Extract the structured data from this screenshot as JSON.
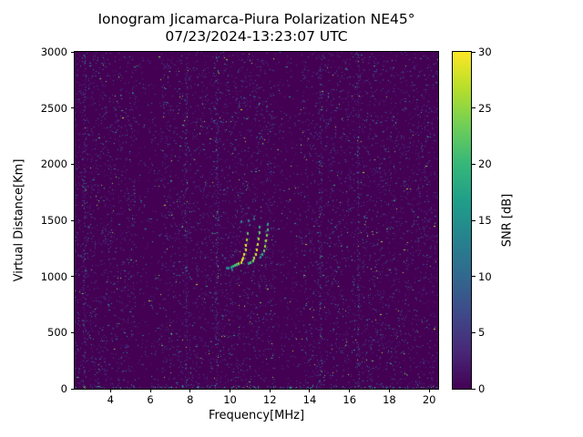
{
  "chart_data": {
    "type": "heatmap",
    "title": "Ionogram Jicamarca-Piura Polarization NE45°",
    "subtitle": "07/23/2024-13:23:07 UTC",
    "xlabel": "Frequency[MHz]",
    "ylabel": "Virtual Distance[Km]",
    "xlim": [
      2.2,
      20.45
    ],
    "ylim": [
      0,
      3000
    ],
    "xticks": [
      4,
      6,
      8,
      10,
      12,
      14,
      16,
      18,
      20
    ],
    "yticks": [
      0,
      500,
      1000,
      1500,
      2000,
      2500,
      3000
    ],
    "grid": false,
    "colorbar": {
      "label": "SNR [dB]",
      "min": 0,
      "max": 30,
      "ticks": [
        0,
        5,
        10,
        15,
        20,
        25,
        30
      ],
      "position": "right"
    },
    "colormap": {
      "name": "viridis",
      "stops": [
        "#440154",
        "#482878",
        "#3e4989",
        "#31688e",
        "#26828e",
        "#1f9e89",
        "#35b779",
        "#6ece58",
        "#b5de2b",
        "#fde725"
      ]
    },
    "background_value_color": "#440154",
    "noise": {
      "seed": 42,
      "density": 0.055,
      "rfi_lines_mhz": [
        2.7,
        7.8,
        9.35,
        14.55,
        16.45
      ],
      "quiet_bands_mhz": [
        5.9,
        12.9
      ],
      "ground_echo_km": 0
    },
    "echo_trace": {
      "units": [
        "freq_MHz",
        "virtual_km",
        "snr_dB"
      ],
      "branches": [
        [
          [
            9.85,
            1075,
            13
          ],
          [
            9.95,
            1082,
            15
          ],
          [
            10.05,
            1088,
            17
          ],
          [
            10.15,
            1094,
            19
          ],
          [
            10.25,
            1101,
            21
          ],
          [
            10.35,
            1108,
            23
          ],
          [
            10.45,
            1118,
            25
          ],
          [
            10.55,
            1131,
            28
          ],
          [
            10.62,
            1148,
            30
          ],
          [
            10.68,
            1170,
            28
          ],
          [
            10.73,
            1202,
            30
          ],
          [
            10.78,
            1240,
            29
          ],
          [
            10.82,
            1284,
            30
          ],
          [
            10.85,
            1333,
            26
          ],
          [
            10.87,
            1384,
            22
          ]
        ],
        [
          [
            10.95,
            1116,
            17
          ],
          [
            11.05,
            1128,
            21
          ],
          [
            11.15,
            1146,
            24
          ],
          [
            11.23,
            1169,
            27
          ],
          [
            11.3,
            1199,
            29
          ],
          [
            11.36,
            1239,
            30
          ],
          [
            11.41,
            1287,
            28
          ],
          [
            11.45,
            1340,
            26
          ],
          [
            11.48,
            1394,
            23
          ],
          [
            11.5,
            1446,
            19
          ]
        ],
        [
          [
            11.55,
            1176,
            15
          ],
          [
            11.63,
            1201,
            19
          ],
          [
            11.7,
            1234,
            23
          ],
          [
            11.76,
            1274,
            26
          ],
          [
            11.81,
            1320,
            26
          ],
          [
            11.85,
            1369,
            24
          ],
          [
            11.88,
            1419,
            21
          ],
          [
            11.9,
            1468,
            17
          ]
        ]
      ],
      "scatter_points": [
        [
          10.56,
          1494,
          13
        ],
        [
          10.92,
          1504,
          12
        ],
        [
          11.2,
          1518,
          10
        ],
        [
          10.1,
          1065,
          11
        ]
      ]
    }
  }
}
